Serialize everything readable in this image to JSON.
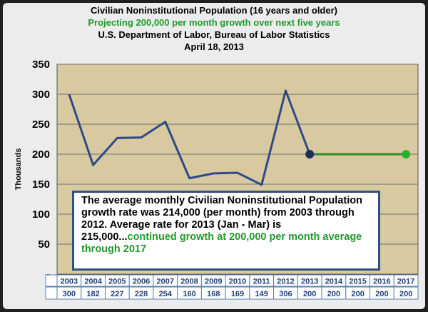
{
  "titles": {
    "line1": "Civilian Noninstitutional Population (16 years and older)",
    "line2": "Projecting 200,000 per month growth over next five years",
    "line3": "U.S. Department of Labor, Bureau of Labor Statistics",
    "line4": "April 18, 2013"
  },
  "note": {
    "text": "The average monthly Civilian Noninstitutional Population growth rate was 214,000 (per month) from 2003 through 2012.  Average rate for 2013 (Jan - Mar) is 215,000...",
    "highlight": "continued growth at 200,000 per month average through 2017"
  },
  "colors": {
    "plot_background": "#d8c9a0",
    "actual_line": "#2e4a86",
    "projection_line": "#2e8b2e",
    "accent_green": "#1f9a2b"
  },
  "chart_data": {
    "type": "line",
    "ylabel": "Thousands",
    "ylim": [
      0,
      350
    ],
    "yticks": [
      0,
      50,
      100,
      150,
      200,
      250,
      300,
      350
    ],
    "ytick_labels": [
      "-",
      "50",
      "100",
      "150",
      "200",
      "250",
      "300",
      "350"
    ],
    "grid": "horizontal",
    "categories": [
      "2003",
      "2004",
      "2005",
      "2006",
      "2007",
      "2008",
      "2009",
      "2010",
      "2011",
      "2012",
      "2013",
      "2014",
      "2015",
      "2016",
      "2017"
    ],
    "table_values": [
      "300",
      "182",
      "227",
      "228",
      "254",
      "160",
      "168",
      "169",
      "149",
      "306",
      "200",
      "200",
      "200",
      "200",
      "200"
    ],
    "series": [
      {
        "values": [
          300,
          182,
          227,
          228,
          254,
          160,
          168,
          169,
          149,
          306,
          200,
          null,
          null,
          null,
          null
        ]
      },
      {
        "values": [
          null,
          null,
          null,
          null,
          null,
          null,
          null,
          null,
          null,
          null,
          200,
          200,
          200,
          200,
          200
        ]
      }
    ]
  }
}
